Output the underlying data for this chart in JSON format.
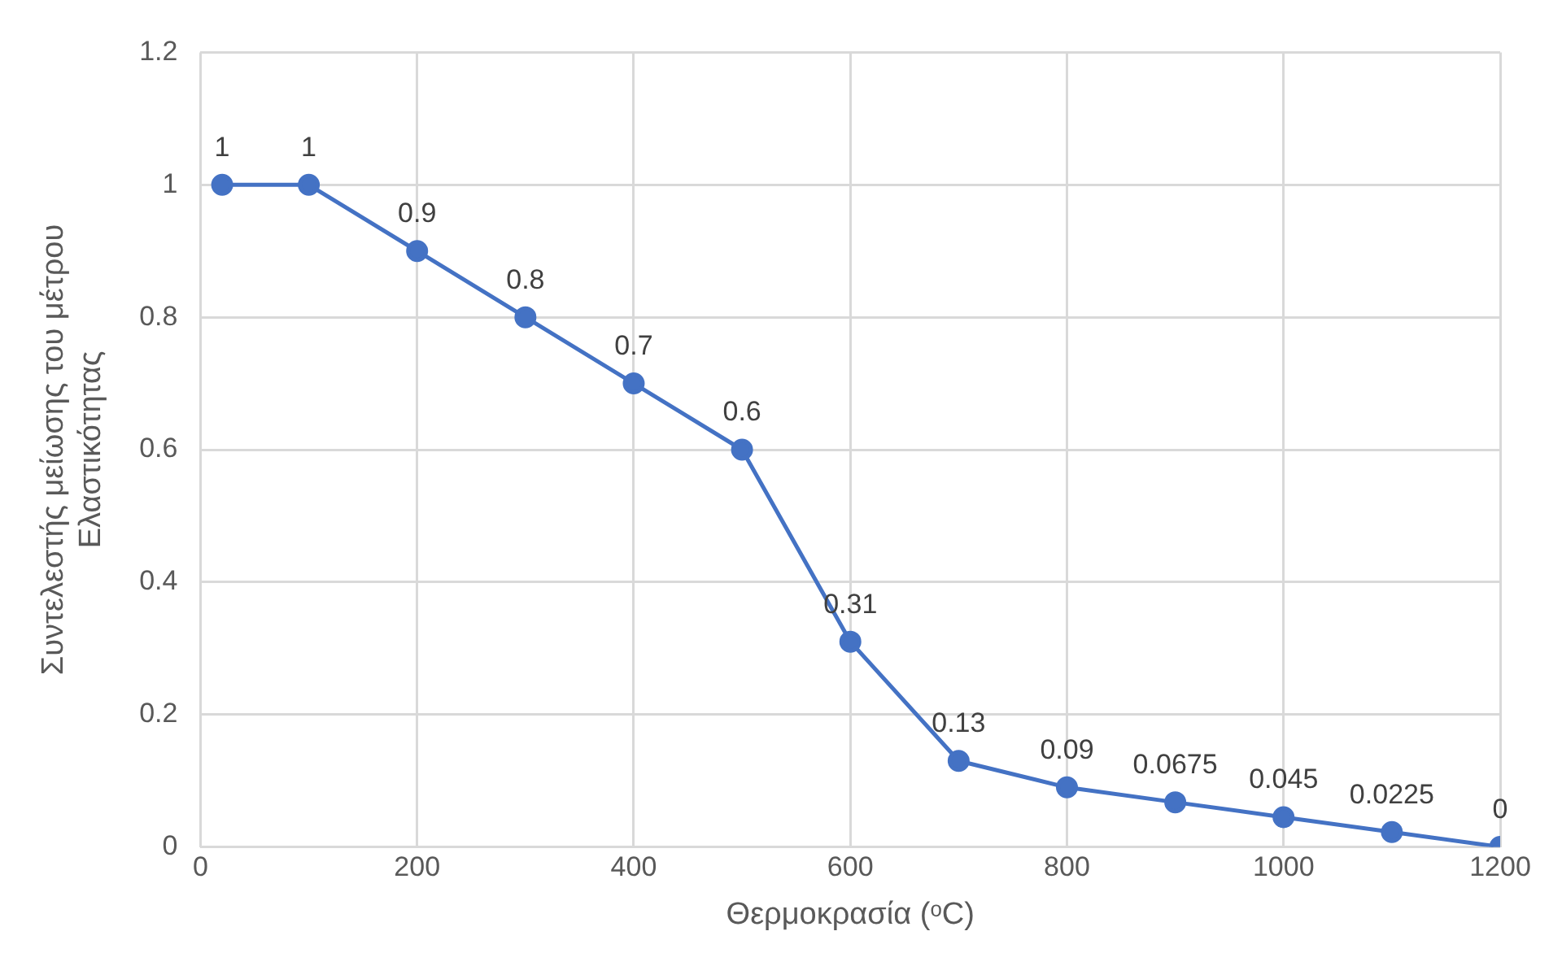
{
  "chart_data": {
    "type": "line",
    "xlabel": "Θερμοκρασία (ᵒC)",
    "ylabel": "Συντελεστής μείωσης του μέτρου\nΕλαστικότητας",
    "x": [
      20,
      100,
      200,
      300,
      400,
      500,
      600,
      700,
      800,
      900,
      1000,
      1100,
      1200
    ],
    "series": [
      {
        "color": "#4472c4",
        "values": [
          1,
          1,
          0.9,
          0.8,
          0.7,
          0.6,
          0.31,
          0.13,
          0.09,
          0.0675,
          0.045,
          0.0225,
          0
        ]
      }
    ],
    "xlim": [
      0,
      1200
    ],
    "xticks": [
      0,
      200,
      400,
      600,
      800,
      1000,
      1200
    ],
    "ylim": [
      0,
      1.2
    ],
    "yticks": [
      0,
      0.2,
      0.4,
      0.6,
      0.8,
      1,
      1.2
    ],
    "grid": true,
    "legend": false,
    "marker": "circle",
    "line_style": "solid",
    "data_labels": true
  }
}
